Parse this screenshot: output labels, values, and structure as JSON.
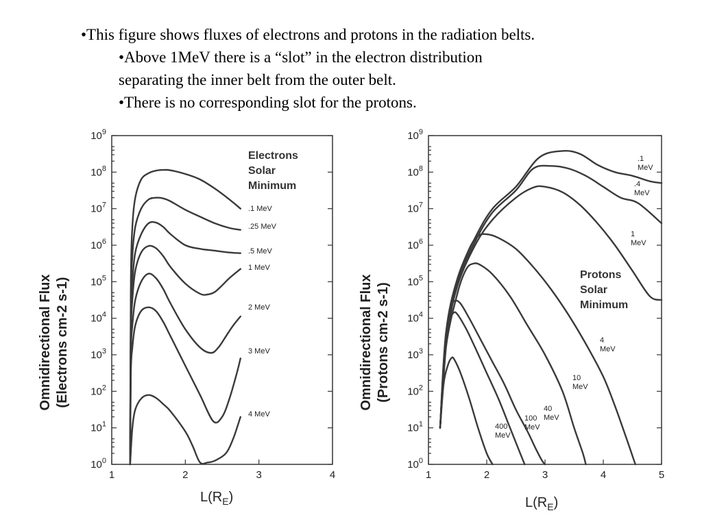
{
  "slide": {
    "bullets": [
      {
        "level": 1,
        "text": "•This figure shows fluxes of electrons and protons in the radiation belts."
      },
      {
        "level": 2,
        "text": "•Above 1MeV there is a “slot” in the electron distribution"
      },
      {
        "level": 2,
        "text": "separating the inner belt from the outer belt."
      },
      {
        "level": 2,
        "text": "•There is no corresponding slot for the protons."
      }
    ]
  },
  "chart_data": [
    {
      "type": "line",
      "annotation": [
        "Electrons",
        "Solar",
        "Minimum"
      ],
      "ylabel_line1": "Omnidirectional Flux",
      "ylabel_line2": "(Electrons cm-2 s-1)",
      "xlabel": "L(R",
      "xlabel_sub": "E",
      "xlabel_close": ")",
      "x_ticks": [
        "1",
        "2",
        "3",
        "4"
      ],
      "y_tick_exponents": [
        "0",
        "1",
        "2",
        "3",
        "4",
        "5",
        "6",
        "7",
        "8",
        "9"
      ],
      "y_tick_base": "10",
      "xlim": [
        1,
        4
      ],
      "ylim_log10": [
        0,
        9
      ],
      "y_scale": "log",
      "series": [
        {
          "name": ".1 MeV",
          "x": [
            1.25,
            1.26,
            1.28,
            1.32,
            1.4,
            1.5,
            1.6,
            1.7,
            1.8,
            2.0,
            2.2,
            2.4,
            2.6,
            2.75
          ],
          "y_log10": [
            0,
            5.0,
            6.5,
            7.3,
            7.8,
            7.97,
            8.04,
            8.06,
            8.05,
            7.95,
            7.8,
            7.55,
            7.25,
            7.0
          ]
        },
        {
          "name": ".25 MeV",
          "x": [
            1.25,
            1.26,
            1.28,
            1.32,
            1.4,
            1.5,
            1.6,
            1.7,
            1.8,
            2.0,
            2.2,
            2.4,
            2.6,
            2.75
          ],
          "y_log10": [
            0,
            4.5,
            5.7,
            6.5,
            7.0,
            7.25,
            7.3,
            7.28,
            7.2,
            6.97,
            6.78,
            6.6,
            6.47,
            6.42
          ]
        },
        {
          "name": ".5 MeV",
          "x": [
            1.25,
            1.26,
            1.28,
            1.32,
            1.4,
            1.5,
            1.6,
            1.7,
            1.8,
            2.0,
            2.2,
            2.4,
            2.6,
            2.75
          ],
          "y_log10": [
            0,
            4.0,
            5.0,
            5.8,
            6.3,
            6.6,
            6.62,
            6.5,
            6.3,
            6.0,
            5.9,
            5.85,
            5.8,
            5.78
          ]
        },
        {
          "name": "1 MeV",
          "x": [
            1.25,
            1.26,
            1.28,
            1.32,
            1.4,
            1.5,
            1.6,
            1.7,
            1.8,
            2.0,
            2.2,
            2.3,
            2.4,
            2.5,
            2.6,
            2.75
          ],
          "y_log10": [
            0,
            3.5,
            4.5,
            5.3,
            5.8,
            5.98,
            5.92,
            5.7,
            5.4,
            4.95,
            4.67,
            4.65,
            4.72,
            4.9,
            5.1,
            5.35
          ]
        },
        {
          "name": "2 MeV",
          "x": [
            1.25,
            1.26,
            1.28,
            1.32,
            1.4,
            1.5,
            1.6,
            1.7,
            1.8,
            2.0,
            2.2,
            2.35,
            2.45,
            2.55,
            2.65,
            2.75
          ],
          "y_log10": [
            0,
            3.0,
            3.8,
            4.5,
            5.0,
            5.22,
            5.1,
            4.8,
            4.4,
            3.7,
            3.2,
            3.05,
            3.2,
            3.5,
            3.8,
            4.05
          ]
        },
        {
          "name": "3 MeV",
          "x": [
            1.25,
            1.26,
            1.28,
            1.32,
            1.4,
            1.5,
            1.6,
            1.7,
            1.8,
            2.0,
            2.2,
            2.38,
            2.5,
            2.6,
            2.7,
            2.75
          ],
          "y_log10": [
            0,
            2.5,
            3.2,
            3.8,
            4.2,
            4.3,
            4.2,
            3.9,
            3.5,
            2.7,
            1.9,
            1.18,
            1.3,
            1.8,
            2.5,
            2.9
          ]
        },
        {
          "name": "4 MeV",
          "x": [
            1.25,
            1.28,
            1.32,
            1.4,
            1.5,
            1.6,
            1.7,
            1.8,
            2.0,
            2.1,
            2.2,
            2.3,
            2.4,
            2.55,
            2.65,
            2.75
          ],
          "y_log10": [
            0,
            1.0,
            1.5,
            1.8,
            1.9,
            1.82,
            1.65,
            1.45,
            0.9,
            0.5,
            0.05,
            0.05,
            0.1,
            0.3,
            0.7,
            1.3
          ]
        }
      ]
    },
    {
      "type": "line",
      "annotation": [
        "Protons",
        "Solar",
        "Minimum"
      ],
      "ylabel_line1": "Omnidirectional Flux",
      "ylabel_line2": "(Protons cm-2 s-1)",
      "xlabel": "L(R",
      "xlabel_sub": "E",
      "xlabel_close": ")",
      "x_ticks": [
        "1",
        "2",
        "3",
        "4",
        "5"
      ],
      "y_tick_exponents": [
        "0",
        "1",
        "2",
        "3",
        "4",
        "5",
        "6",
        "7",
        "8",
        "9"
      ],
      "y_tick_base": "10",
      "xlim": [
        1,
        5
      ],
      "ylim_log10": [
        0,
        9
      ],
      "y_scale": "log",
      "series": [
        {
          "name": ".1 MeV",
          "label_lines": [
            ".1",
            "MeV"
          ],
          "x": [
            1.2,
            1.3,
            1.5,
            1.8,
            2.1,
            2.5,
            2.9,
            3.3,
            3.6,
            3.9,
            4.2,
            4.5,
            4.8,
            5.0
          ],
          "y_log10": [
            1.0,
            3.6,
            5.1,
            6.2,
            7.0,
            7.6,
            8.4,
            8.58,
            8.5,
            8.2,
            8.0,
            7.9,
            7.75,
            7.7
          ]
        },
        {
          "name": ".4 MeV",
          "label_lines": [
            ".4",
            "MeV"
          ],
          "x": [
            1.2,
            1.3,
            1.5,
            1.8,
            2.1,
            2.5,
            2.8,
            3.1,
            3.4,
            3.7,
            4.0,
            4.3,
            4.6,
            5.0
          ],
          "y_log10": [
            1.0,
            3.5,
            5.0,
            6.1,
            6.9,
            7.5,
            8.1,
            8.17,
            8.1,
            7.9,
            7.6,
            7.3,
            7.15,
            6.6
          ]
        },
        {
          "name": "1 MeV",
          "label_lines": [
            "1",
            "MeV"
          ],
          "x": [
            1.2,
            1.3,
            1.5,
            1.8,
            2.1,
            2.5,
            2.8,
            3.0,
            3.3,
            3.6,
            3.9,
            4.2,
            4.5,
            4.8,
            5.0
          ],
          "y_log10": [
            1.0,
            3.4,
            4.9,
            6.0,
            6.7,
            7.3,
            7.58,
            7.6,
            7.45,
            7.1,
            6.6,
            6.0,
            5.3,
            4.6,
            4.5
          ]
        },
        {
          "name": "4 MeV",
          "label_lines": [
            "4",
            "MeV"
          ],
          "x": [
            1.2,
            1.3,
            1.5,
            1.7,
            1.85,
            2.0,
            2.2,
            2.5,
            2.8,
            3.1,
            3.4,
            3.7,
            4.0,
            4.2,
            4.4,
            4.55
          ],
          "y_log10": [
            1.0,
            3.3,
            5.0,
            5.9,
            6.25,
            6.3,
            6.2,
            5.9,
            5.4,
            4.8,
            4.1,
            3.3,
            2.4,
            1.6,
            0.7,
            0
          ]
        },
        {
          "name": "10 MeV",
          "label_lines": [
            "10",
            "MeV"
          ],
          "x": [
            1.2,
            1.3,
            1.5,
            1.65,
            1.78,
            1.9,
            2.1,
            2.4,
            2.7,
            3.0,
            3.3,
            3.5,
            3.65,
            3.7
          ],
          "y_log10": [
            1.0,
            3.2,
            4.7,
            5.35,
            5.5,
            5.45,
            5.2,
            4.6,
            3.8,
            3.0,
            2.0,
            1.0,
            0.3,
            0
          ]
        },
        {
          "name": "40 MeV",
          "label_lines": [
            "40",
            "MeV"
          ],
          "x": [
            1.2,
            1.3,
            1.4,
            1.46,
            1.55,
            1.7,
            1.9,
            2.1,
            2.3,
            2.5,
            2.7,
            2.85,
            2.95,
            3.0
          ],
          "y_log10": [
            1.0,
            3.2,
            4.3,
            4.48,
            4.4,
            4.0,
            3.4,
            2.8,
            2.2,
            1.5,
            0.9,
            0.4,
            0.1,
            0
          ]
        },
        {
          "name": "100 MeV",
          "label_lines": [
            "100",
            "MeV"
          ],
          "x": [
            1.2,
            1.28,
            1.36,
            1.43,
            1.5,
            1.65,
            1.8,
            2.0,
            2.2,
            2.4,
            2.55,
            2.65
          ],
          "y_log10": [
            1.0,
            3.0,
            3.9,
            4.15,
            4.1,
            3.7,
            3.2,
            2.5,
            1.8,
            1.0,
            0.4,
            0
          ]
        },
        {
          "name": "400 MeV",
          "label_lines": [
            "400",
            "MeV"
          ],
          "x": [
            1.2,
            1.26,
            1.33,
            1.4,
            1.45,
            1.55,
            1.7,
            1.85,
            2.0,
            2.1
          ],
          "y_log10": [
            1.0,
            2.2,
            2.7,
            2.92,
            2.85,
            2.5,
            1.8,
            1.0,
            0.3,
            0
          ]
        }
      ]
    }
  ]
}
